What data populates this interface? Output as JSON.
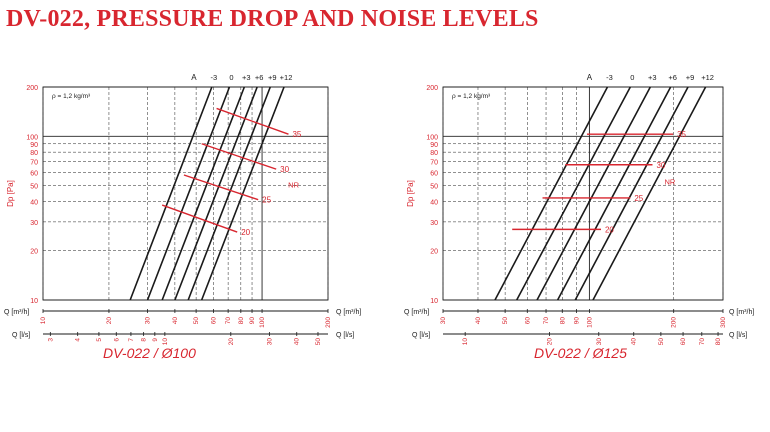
{
  "page": {
    "title": "DV-022, PRESSURE DROP AND NOISE LEVELS"
  },
  "colors": {
    "red": "#d8262f",
    "line": "#1a1a1a",
    "grid": "#222222"
  },
  "chart_data": [
    {
      "type": "line",
      "caption": "DV-022 / Ø100",
      "ylabel": "Dp [Pa]",
      "yscale": "log",
      "ylim": [
        10,
        200
      ],
      "yticks": [
        "10",
        "20",
        "30",
        "40",
        "50",
        "60",
        "70",
        "80",
        "90",
        "100",
        "200"
      ],
      "xscale": "log",
      "xlim_m3h": [
        10,
        200
      ],
      "x_m3h_label": "Q [m³/h]",
      "x_m3h_ticks": [
        "10",
        "20",
        "30",
        "40",
        "50",
        "60",
        "70",
        "80",
        "90",
        "100",
        "200"
      ],
      "x_ls_label": "Q [l/s]",
      "x_ls_ticks": [
        "3",
        "4",
        "5",
        "6",
        "7",
        "8",
        "9",
        "10",
        "20",
        "30",
        "40",
        "50"
      ],
      "density_note": "ρ = 1,2 kg/m³",
      "series_label_prefix": "A",
      "series": [
        {
          "name": "-3",
          "x": [
            25,
            59
          ],
          "y": [
            10,
            200
          ]
        },
        {
          "name": "0",
          "x": [
            30,
            71
          ],
          "y": [
            10,
            200
          ]
        },
        {
          "name": "+3",
          "x": [
            35,
            83
          ],
          "y": [
            10,
            200
          ]
        },
        {
          "name": "+6",
          "x": [
            40,
            95
          ],
          "y": [
            10,
            200
          ]
        },
        {
          "name": "+9",
          "x": [
            46,
            109
          ],
          "y": [
            10,
            200
          ]
        },
        {
          "name": "+12",
          "x": [
            53,
            126
          ],
          "y": [
            10,
            200
          ]
        }
      ],
      "nr_label": "NR",
      "nr_curves": [
        {
          "name": "20",
          "x": [
            35,
            77
          ],
          "y": [
            38,
            26
          ]
        },
        {
          "name": "25",
          "x": [
            44,
            96
          ],
          "y": [
            58,
            41
          ]
        },
        {
          "name": "30",
          "x": [
            53,
            116
          ],
          "y": [
            90,
            63
          ]
        },
        {
          "name": "35",
          "x": [
            62,
            132
          ],
          "y": [
            148,
            103
          ]
        }
      ]
    },
    {
      "type": "line",
      "caption": "DV-022 / Ø125",
      "ylabel": "Dp [Pa]",
      "yscale": "log",
      "ylim": [
        10,
        200
      ],
      "yticks": [
        "10",
        "20",
        "30",
        "40",
        "50",
        "60",
        "70",
        "80",
        "90",
        "100",
        "200"
      ],
      "xscale": "log",
      "xlim_m3h": [
        30,
        300
      ],
      "x_m3h_label": "Q [m³/h]",
      "x_m3h_ticks": [
        "30",
        "40",
        "50",
        "60",
        "70",
        "80",
        "90",
        "100",
        "200",
        "300"
      ],
      "x_ls_label": "Q [l/s]",
      "x_ls_ticks": [
        "10",
        "20",
        "30",
        "40",
        "50",
        "60",
        "70",
        "80"
      ],
      "density_note": "ρ = 1,2 kg/m³",
      "series_label_prefix": "A",
      "series": [
        {
          "name": "-3",
          "x": [
            46,
            116
          ],
          "y": [
            10,
            200
          ]
        },
        {
          "name": "0",
          "x": [
            55,
            140
          ],
          "y": [
            10,
            200
          ]
        },
        {
          "name": "+3",
          "x": [
            65,
            165
          ],
          "y": [
            10,
            200
          ]
        },
        {
          "name": "+6",
          "x": [
            77,
            195
          ],
          "y": [
            10,
            200
          ]
        },
        {
          "name": "+9",
          "x": [
            89,
            225
          ],
          "y": [
            10,
            200
          ]
        },
        {
          "name": "+12",
          "x": [
            103,
            260
          ],
          "y": [
            10,
            200
          ]
        }
      ],
      "nr_label": "NR",
      "nr_curves": [
        {
          "name": "20",
          "x": [
            53,
            110
          ],
          "y": [
            27,
            27
          ]
        },
        {
          "name": "25",
          "x": [
            68,
            140
          ],
          "y": [
            42,
            42
          ]
        },
        {
          "name": "30",
          "x": [
            82,
            168
          ],
          "y": [
            67,
            67
          ]
        },
        {
          "name": "35",
          "x": [
            98,
            199
          ],
          "y": [
            103,
            103
          ]
        }
      ]
    }
  ]
}
